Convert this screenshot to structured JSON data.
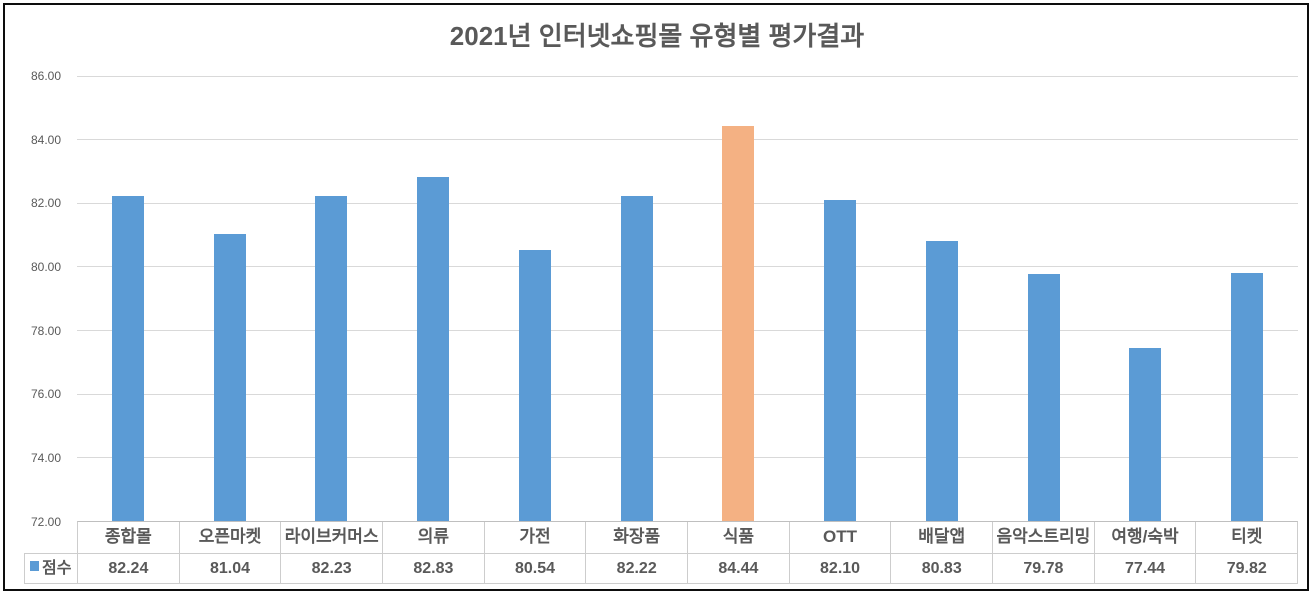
{
  "chart_data": {
    "type": "bar",
    "title": "2021년 인터넷쇼핑몰 유형별 평가결과",
    "categories": [
      "종합몰",
      "오픈마켓",
      "라이브커머스",
      "의류",
      "가전",
      "화장품",
      "식품",
      "OTT",
      "배달앱",
      "음악스트리밍",
      "여행/숙박",
      "티켓"
    ],
    "series": [
      {
        "name": "점수",
        "values": [
          82.24,
          81.04,
          82.23,
          82.83,
          80.54,
          82.22,
          84.44,
          82.1,
          80.83,
          79.78,
          77.44,
          79.82
        ]
      }
    ],
    "value_labels": [
      "82.24",
      "81.04",
      "82.23",
      "82.83",
      "80.54",
      "82.22",
      "84.44",
      "82.10",
      "80.83",
      "79.78",
      "77.44",
      "79.82"
    ],
    "highlight_index": 6,
    "ylim": [
      72,
      86
    ],
    "ytick_labels": [
      "86.00",
      "84.00",
      "82.00",
      "80.00",
      "78.00",
      "76.00",
      "74.00",
      "72.00"
    ],
    "ytick_values": [
      86,
      84,
      82,
      80,
      78,
      76,
      74,
      72
    ],
    "grid": true,
    "legend_position": "data-table-left",
    "xlabel": "",
    "ylabel": "",
    "colors": {
      "bar": "#5b9bd5",
      "highlight": "#f4b183",
      "gridline": "#d9d9d9",
      "title_text": "#595959",
      "axis_text": "#595959",
      "table_text": "#595959",
      "legend_marker": "#5b9bd5"
    }
  },
  "legend": {
    "label": "점수"
  }
}
